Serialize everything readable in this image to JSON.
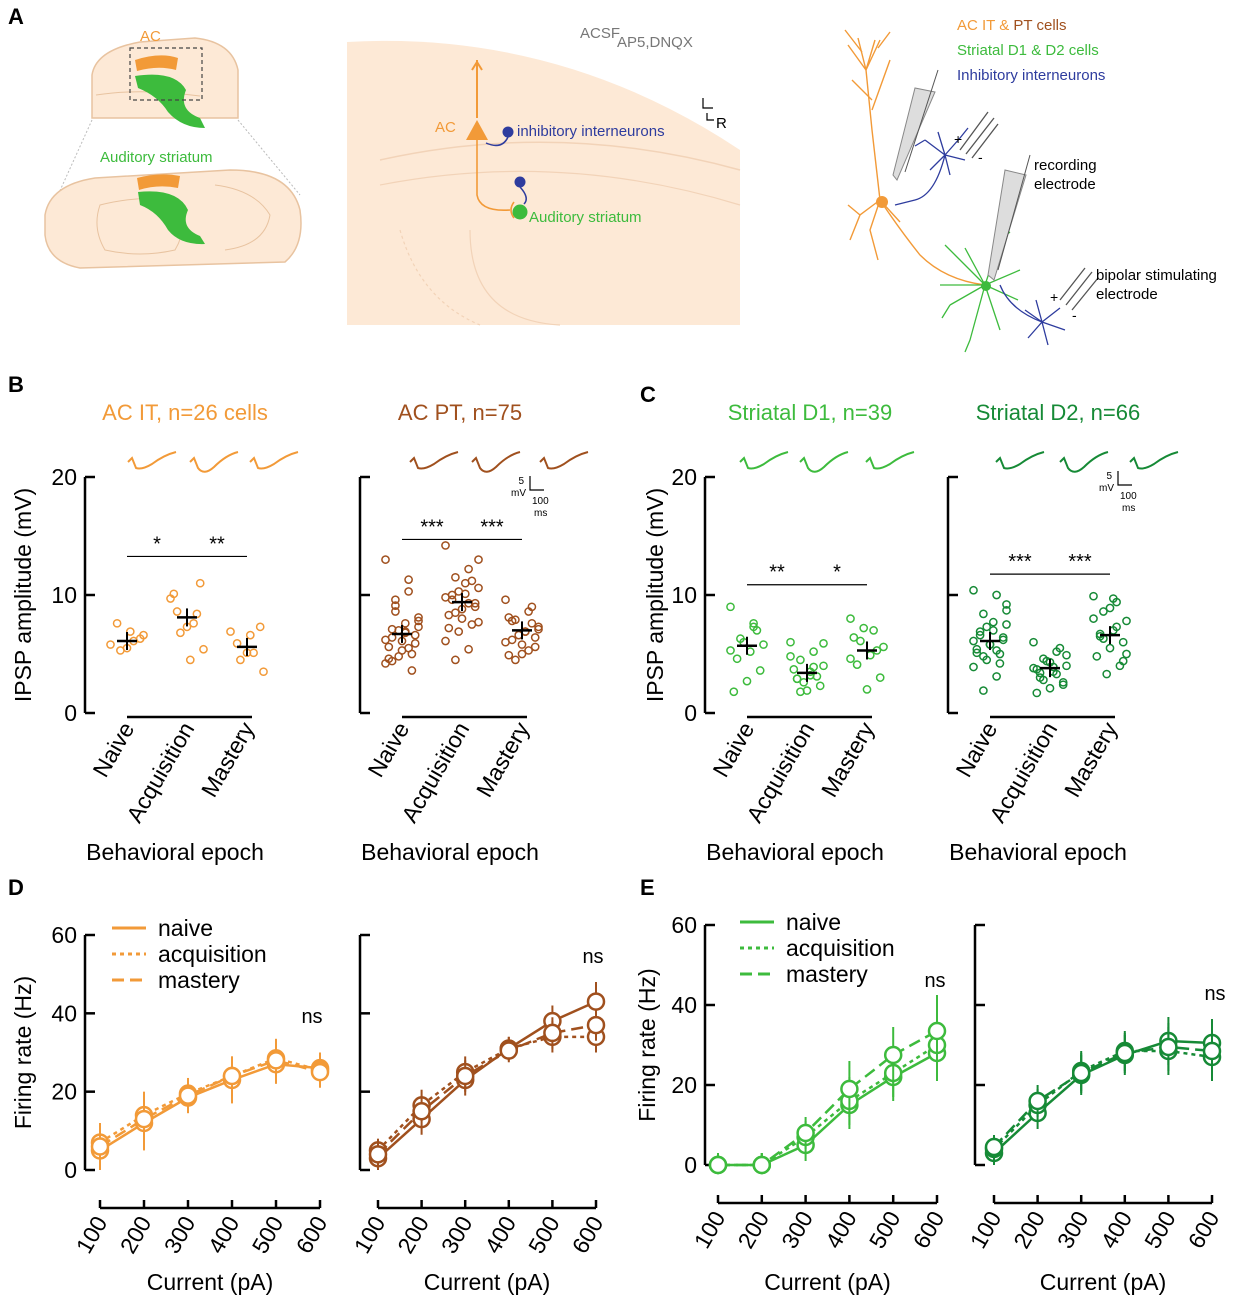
{
  "panel_labels": {
    "A": "A",
    "B": "B",
    "C": "C",
    "D": "D",
    "E": "E"
  },
  "colors": {
    "orange": "#f29a38",
    "brown": "#a0501e",
    "lightgreen": "#3dbb3d",
    "darkgreen": "#168a36",
    "blue": "#2e3c9e",
    "slice": "#fde9d6"
  },
  "panel_a": {
    "brain_labels": {
      "ac": "AC",
      "striatum": "Auditory striatum"
    },
    "slice": {
      "acsf": "ACSF",
      "drugs": "AP5,DNQX",
      "ac": "AC",
      "interneurons": "inhibitory interneurons",
      "striatum": "Auditory striatum",
      "orient_r": "R"
    },
    "legend": {
      "line1_prefix": "AC IT & ",
      "line1_suffix": "PT cells",
      "line2": "Striatal D1 & D2 cells",
      "line3": "Inhibitory interneurons"
    },
    "recording": {
      "line1": "recording",
      "line2": "electrode"
    },
    "stim": {
      "line1": "bipolar stimulating",
      "line2": "electrode"
    },
    "plus": "+",
    "minus": "-"
  },
  "ipsp": {
    "ylabel": "IPSP amplitude (mV)",
    "xlabel": "Behavioral epoch",
    "yticks": [
      "0",
      "10",
      "20"
    ],
    "scalebar": {
      "mv_value": "5",
      "mv_unit": "mV",
      "ms_value": "100",
      "ms_unit": "ms"
    }
  },
  "fi": {
    "ylabel": "Firing rate (Hz)",
    "xlabel": "Current (pA)",
    "yticks": [
      "0",
      "20",
      "40",
      "60"
    ],
    "xticks": [
      "100",
      "200",
      "300",
      "400",
      "500",
      "600"
    ],
    "legend": [
      "naive",
      "acquisition",
      "mastery"
    ]
  },
  "chart_data": [
    {
      "type": "scatter",
      "panel": "B",
      "title": "AC IT, n=26 cells",
      "categories": [
        "Naive",
        "Acquisition",
        "Mastery"
      ],
      "ylabel": "IPSP amplitude (mV)",
      "xlabel": "Behavioral epoch",
      "ylim": [
        0,
        20
      ],
      "means": [
        6.1,
        8.1,
        5.6
      ],
      "points": [
        [
          5.8,
          6.1,
          5.3,
          6.6,
          6.9,
          7.6,
          6.3,
          5.5
        ],
        [
          9.7,
          7.6,
          6.8,
          5.4,
          4.5,
          8.6,
          11.0,
          7.3,
          10.1,
          8.4
        ],
        [
          6.9,
          5.1,
          4.5,
          3.5,
          6.6,
          5.9,
          7.3,
          5.1
        ]
      ],
      "significance": [
        "*",
        "**"
      ]
    },
    {
      "type": "scatter",
      "panel": "B",
      "title": "AC PT, n=75",
      "categories": [
        "Naive",
        "Acquisition",
        "Mastery"
      ],
      "ylabel": "IPSP amplitude (mV)",
      "xlabel": "Behavioral epoch",
      "ylim": [
        0,
        20
      ],
      "means": [
        6.7,
        9.4,
        7.0
      ],
      "points": [
        [
          13.0,
          11.3,
          9.1,
          8.1,
          7.6,
          7.1,
          6.6,
          6.1,
          5.6,
          5.0,
          4.8,
          4.2,
          10.3,
          8.6,
          7.3,
          6.9,
          6.4,
          5.9,
          5.3,
          4.6,
          3.6,
          7.0,
          6.2,
          5.5,
          9.6,
          7.8,
          6.8,
          4.4
        ],
        [
          14.2,
          12.2,
          11.5,
          10.6,
          10.1,
          9.6,
          9.3,
          8.8,
          8.3,
          7.5,
          6.9,
          6.1,
          5.4,
          4.5,
          13.0,
          11.0,
          10.0,
          9.0,
          8.0,
          7.2,
          11.2,
          10.3,
          9.8,
          9.3,
          8.5,
          7.7
        ],
        [
          9.6,
          8.6,
          7.9,
          7.3,
          6.9,
          6.2,
          5.6,
          5.0,
          8.1,
          7.6,
          6.6,
          6.0,
          5.3,
          4.5,
          7.1,
          6.9,
          7.8,
          6.4,
          5.8,
          4.9,
          9.0
        ]
      ],
      "significance": [
        "***",
        "***"
      ]
    },
    {
      "type": "scatter",
      "panel": "C",
      "title": "Striatal D1, n=39",
      "categories": [
        "Naive",
        "Acquisition",
        "Mastery"
      ],
      "ylabel": "IPSP amplitude (mV)",
      "xlabel": "Behavioral epoch",
      "ylim": [
        0,
        20
      ],
      "means": [
        5.7,
        3.4,
        5.3
      ],
      "points": [
        [
          9.0,
          7.6,
          6.3,
          5.8,
          5.2,
          4.6,
          3.6,
          2.7,
          1.8,
          7.0,
          6.0,
          5.3,
          7.3
        ],
        [
          6.0,
          5.2,
          4.5,
          4.0,
          3.5,
          2.9,
          2.3,
          1.9,
          3.7,
          3.1,
          2.6,
          4.8,
          3.9,
          1.8,
          5.9,
          3.2,
          2.9
        ],
        [
          8.0,
          7.0,
          6.1,
          5.6,
          4.9,
          4.1,
          3.0,
          2.0,
          6.4,
          5.3,
          7.2,
          4.6
        ]
      ],
      "significance": [
        "**",
        "*"
      ]
    },
    {
      "type": "scatter",
      "panel": "C",
      "title": "Striatal D2, n=66",
      "categories": [
        "Naive",
        "Acquisition",
        "Mastery"
      ],
      "ylabel": "IPSP amplitude (mV)",
      "xlabel": "Behavioral epoch",
      "ylim": [
        0,
        20
      ],
      "means": [
        6.1,
        3.8,
        6.6
      ],
      "points": [
        [
          10.4,
          10.0,
          8.4,
          7.5,
          7.0,
          6.6,
          6.2,
          5.8,
          5.4,
          5.0,
          4.5,
          3.9,
          3.1,
          1.9,
          8.7,
          7.7,
          6.9,
          6.4,
          5.8,
          5.1,
          4.2,
          7.3,
          6.1,
          5.3,
          4.8,
          9.2
        ],
        [
          6.0,
          5.2,
          4.6,
          4.0,
          3.5,
          3.0,
          2.6,
          2.1,
          1.7,
          5.5,
          4.4,
          3.8,
          3.3,
          2.8,
          4.9,
          3.9,
          3.4,
          2.4,
          4.3,
          3.7
        ],
        [
          9.9,
          9.4,
          8.6,
          7.8,
          7.0,
          6.5,
          6.0,
          5.5,
          4.8,
          4.0,
          3.3,
          8.0,
          7.3,
          6.3,
          5.0,
          9.7,
          6.7,
          4.4,
          8.9
        ]
      ],
      "significance": [
        "***",
        "***"
      ]
    },
    {
      "type": "line",
      "panel": "D",
      "x": [
        100,
        200,
        300,
        400,
        500,
        600
      ],
      "xlabel": "Current (pA)",
      "ylabel": "Firing rate (Hz)",
      "ylim": [
        0,
        60
      ],
      "annotation": "ns",
      "series": [
        {
          "name": "naive",
          "values": [
            5,
            12,
            18.5,
            23,
            27,
            26
          ],
          "errors": [
            5,
            7,
            4,
            6,
            5,
            4
          ]
        },
        {
          "name": "acquisition",
          "values": [
            7,
            14,
            19.5,
            24,
            28.5,
            25.5
          ],
          "errors": [
            5,
            6,
            4,
            5,
            5,
            4
          ]
        },
        {
          "name": "mastery",
          "values": [
            6,
            13,
            19,
            24,
            28,
            25
          ],
          "errors": [
            5,
            6,
            4,
            5,
            5,
            4
          ]
        }
      ]
    },
    {
      "type": "line",
      "panel": "D",
      "x": [
        100,
        200,
        300,
        400,
        500,
        600
      ],
      "xlabel": "Current (pA)",
      "ylabel": "Firing rate (Hz)",
      "ylim": [
        0,
        60
      ],
      "annotation": "ns",
      "series": [
        {
          "name": "naive",
          "values": [
            3,
            13,
            23,
            31,
            38,
            43
          ],
          "errors": [
            3,
            4,
            4,
            3,
            4,
            5
          ]
        },
        {
          "name": "acquisition",
          "values": [
            5,
            16.5,
            25,
            31,
            34,
            34
          ],
          "errors": [
            3,
            4,
            4,
            3,
            4,
            4
          ]
        },
        {
          "name": "mastery",
          "values": [
            4,
            15,
            24,
            30.5,
            35,
            37
          ],
          "errors": [
            3,
            4,
            4,
            3,
            4,
            4
          ]
        }
      ]
    },
    {
      "type": "line",
      "panel": "E",
      "x": [
        100,
        200,
        300,
        400,
        500,
        600
      ],
      "xlabel": "Current (pA)",
      "ylabel": "Firing rate (Hz)",
      "ylim": [
        0,
        60
      ],
      "annotation": "ns",
      "series": [
        {
          "name": "naive",
          "values": [
            0,
            0,
            5,
            15,
            22,
            28
          ],
          "errors": [
            3,
            3,
            4,
            6,
            6,
            7
          ]
        },
        {
          "name": "acquisition",
          "values": [
            0,
            0,
            7,
            16,
            23,
            30
          ],
          "errors": [
            3,
            3,
            4,
            6,
            6,
            7
          ]
        },
        {
          "name": "mastery",
          "values": [
            0,
            0,
            8,
            19,
            27.5,
            33.5
          ],
          "errors": [
            3,
            3,
            4,
            7,
            7,
            9
          ]
        }
      ]
    },
    {
      "type": "line",
      "panel": "E",
      "x": [
        100,
        200,
        300,
        400,
        500,
        600
      ],
      "xlabel": "Current (pA)",
      "ylabel": "Firing rate (Hz)",
      "ylim": [
        0,
        60
      ],
      "annotation": "ns",
      "series": [
        {
          "name": "naive",
          "values": [
            3,
            13,
            22.5,
            27.5,
            31,
            30.5
          ],
          "errors": [
            3,
            4,
            5,
            5,
            6,
            6
          ]
        },
        {
          "name": "acquisition",
          "values": [
            4,
            15,
            23.5,
            28.5,
            28.5,
            27
          ],
          "errors": [
            3,
            4,
            5,
            5,
            6,
            6
          ]
        },
        {
          "name": "mastery",
          "values": [
            4.5,
            16,
            23,
            28,
            29.5,
            28.5
          ],
          "errors": [
            3,
            4,
            5,
            5,
            6,
            6
          ]
        }
      ]
    }
  ]
}
